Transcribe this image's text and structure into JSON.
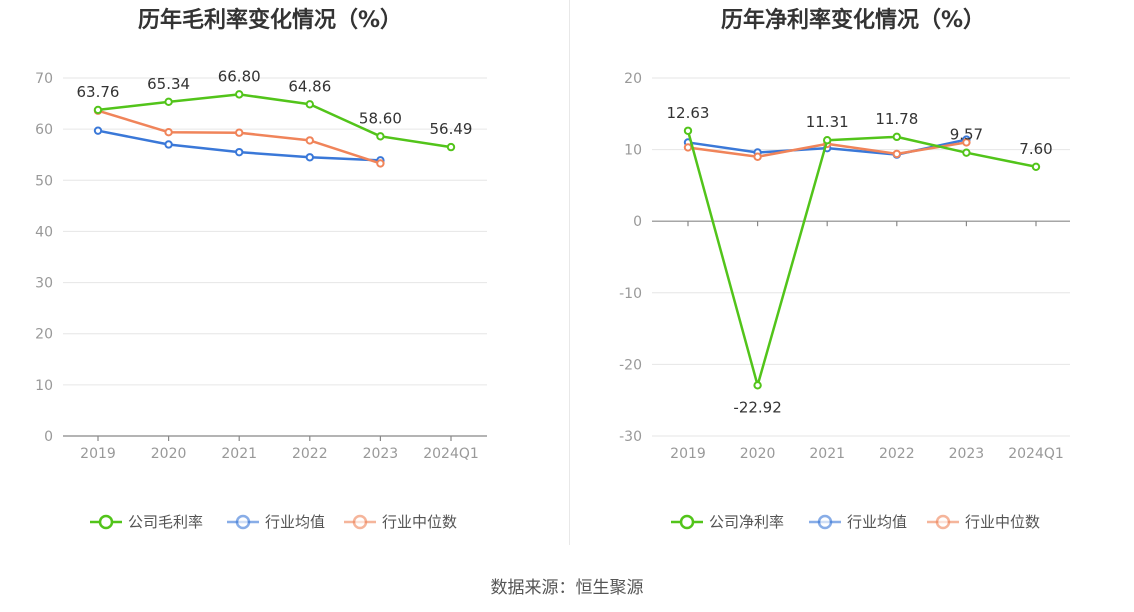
{
  "source_note": "数据来源：恒生聚源",
  "chart_data": [
    {
      "type": "line",
      "title": "历年毛利率变化情况（%）",
      "categories": [
        "2019",
        "2020",
        "2021",
        "2022",
        "2023",
        "2024Q1"
      ],
      "y_ticks": [
        0,
        10,
        20,
        30,
        40,
        50,
        60,
        70
      ],
      "ylim": [
        0,
        70
      ],
      "grid": true,
      "legend_placement": "bottom",
      "series": [
        {
          "name": "公司毛利率",
          "color": "#52c41a",
          "values": [
            63.76,
            65.34,
            66.8,
            64.86,
            58.6,
            56.49
          ],
          "labels": [
            "63.76",
            "65.34",
            "66.80",
            "64.86",
            "58.60",
            "56.49"
          ],
          "z": 2
        },
        {
          "name": "行业均值",
          "color": "#3a78d8",
          "values": [
            59.7,
            57.0,
            55.5,
            54.5,
            53.9,
            null
          ],
          "z": 0
        },
        {
          "name": "行业中位数",
          "color": "#f0845a",
          "values": [
            63.6,
            59.4,
            59.3,
            57.8,
            53.3,
            null
          ],
          "z": 1
        }
      ]
    },
    {
      "type": "line",
      "title": "历年净利率变化情况（%）",
      "categories": [
        "2019",
        "2020",
        "2021",
        "2022",
        "2023",
        "2024Q1"
      ],
      "y_ticks": [
        -30,
        -20,
        -10,
        0,
        10,
        20
      ],
      "ylim": [
        -30,
        20
      ],
      "grid": true,
      "legend_placement": "bottom",
      "series": [
        {
          "name": "公司净利率",
          "color": "#52c41a",
          "values": [
            12.63,
            -22.92,
            11.31,
            11.78,
            9.57,
            7.6
          ],
          "labels": [
            "12.63",
            "-22.92",
            "11.31",
            "11.78",
            "9.57",
            "7.60"
          ],
          "z": 2
        },
        {
          "name": "行业均值",
          "color": "#3a78d8",
          "values": [
            11.0,
            9.6,
            10.2,
            9.3,
            11.4,
            null
          ],
          "z": 0
        },
        {
          "name": "行业中位数",
          "color": "#f0845a",
          "values": [
            10.3,
            9.0,
            10.8,
            9.4,
            11.0,
            null
          ],
          "z": 1
        }
      ]
    }
  ]
}
